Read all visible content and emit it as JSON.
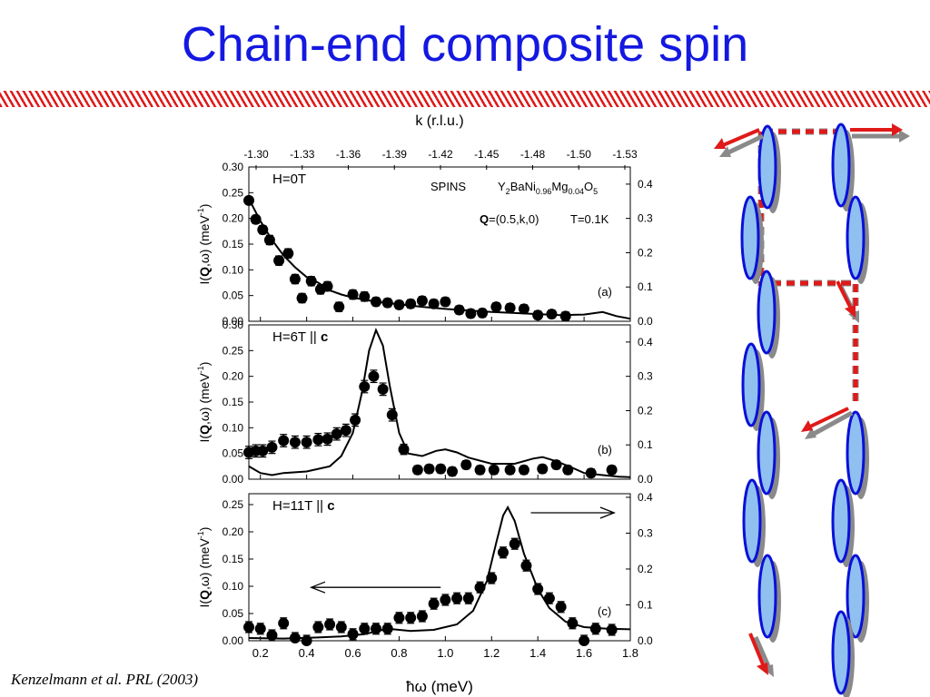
{
  "slide": {
    "title": "Chain-end composite spin",
    "citation": "Kenzelmann et al. PRL (2003)"
  },
  "colors": {
    "title": "#1418e0",
    "stripe": "#e01919",
    "spin_fill": "#8fc0f0",
    "spin_stroke": "#0a10d8",
    "arrow_red": "#e01919",
    "arrow_gray": "#8a8a8a"
  },
  "chart_data": {
    "type": "scatter",
    "xlabel": "ħω (meV)",
    "top_axis_label": "k (r.l.u.)",
    "x_ticks": [
      "0.2",
      "0.4",
      "0.6",
      "0.8",
      "1.0",
      "1.2",
      "1.4",
      "1.6",
      "1.8"
    ],
    "top_ticks": [
      "-1.30",
      "-1.33",
      "-1.36",
      "-1.39",
      "-1.42",
      "-1.45",
      "-1.48",
      "-1.50",
      "-1.53"
    ],
    "xlim": [
      0.15,
      1.8
    ],
    "annotations": {
      "instrument": "SPINS",
      "compound": [
        "Y",
        "2",
        "BaNi",
        "0.96",
        "Mg",
        "0.04",
        "O",
        "5"
      ],
      "q_bold": "Q",
      "q_rest": "=(0.5,k,0)",
      "temperature": "T=0.1K"
    },
    "panels": [
      {
        "tag": "(a)",
        "field_prefix": "H=0T",
        "field_axis": "",
        "ylabel": [
          "I(",
          "Q",
          ",ω) (meV",
          "-1",
          ")"
        ],
        "ylim": [
          0,
          0.3
        ],
        "yticks": [
          "0.00",
          "0.05",
          "0.10",
          "0.15",
          "0.20",
          "0.25",
          "0.30"
        ],
        "right_ylim": [
          0,
          0.45
        ],
        "right_ticks": [
          "0.0",
          "0.1",
          "0.2",
          "0.3",
          "0.4"
        ],
        "points": [
          [
            0.15,
            0.235
          ],
          [
            0.18,
            0.198
          ],
          [
            0.21,
            0.178
          ],
          [
            0.24,
            0.158
          ],
          [
            0.28,
            0.118
          ],
          [
            0.32,
            0.132
          ],
          [
            0.35,
            0.082
          ],
          [
            0.38,
            0.045
          ],
          [
            0.42,
            0.078
          ],
          [
            0.46,
            0.062
          ],
          [
            0.49,
            0.068
          ],
          [
            0.54,
            0.028
          ],
          [
            0.6,
            0.052
          ],
          [
            0.65,
            0.048
          ],
          [
            0.7,
            0.038
          ],
          [
            0.75,
            0.036
          ],
          [
            0.8,
            0.032
          ],
          [
            0.85,
            0.034
          ],
          [
            0.9,
            0.04
          ],
          [
            0.95,
            0.034
          ],
          [
            1.0,
            0.038
          ],
          [
            1.06,
            0.022
          ],
          [
            1.11,
            0.015
          ],
          [
            1.16,
            0.016
          ],
          [
            1.22,
            0.028
          ],
          [
            1.28,
            0.026
          ],
          [
            1.34,
            0.024
          ],
          [
            1.4,
            0.012
          ],
          [
            1.46,
            0.014
          ],
          [
            1.52,
            0.01
          ]
        ],
        "errors": [
          0.006,
          0.008,
          0.008,
          0.009,
          0.009,
          0.009,
          0.009,
          0.009,
          0.009,
          0.009,
          0.009,
          0.009,
          0.009,
          0.009,
          0.008,
          0.008,
          0.008,
          0.008,
          0.008,
          0.008,
          0.008,
          0.008,
          0.008,
          0.008,
          0.008,
          0.008,
          0.008,
          0.008,
          0.008,
          0.008
        ],
        "fit": [
          [
            0.15,
            0.238
          ],
          [
            0.2,
            0.195
          ],
          [
            0.25,
            0.158
          ],
          [
            0.3,
            0.128
          ],
          [
            0.35,
            0.105
          ],
          [
            0.4,
            0.086
          ],
          [
            0.45,
            0.075
          ],
          [
            0.5,
            0.06
          ],
          [
            0.55,
            0.052
          ],
          [
            0.6,
            0.046
          ],
          [
            0.7,
            0.038
          ],
          [
            0.8,
            0.033
          ],
          [
            0.9,
            0.028
          ],
          [
            1.0,
            0.024
          ],
          [
            1.1,
            0.021
          ],
          [
            1.2,
            0.018
          ],
          [
            1.3,
            0.016
          ],
          [
            1.4,
            0.014
          ],
          [
            1.5,
            0.012
          ],
          [
            1.6,
            0.013
          ],
          [
            1.68,
            0.018
          ],
          [
            1.74,
            0.01
          ],
          [
            1.8,
            0.005
          ]
        ]
      },
      {
        "tag": "(b)",
        "field_prefix": "H=6T || ",
        "field_axis": "c",
        "ylabel": [
          "I(",
          "Q",
          ",ω) (meV",
          "-1",
          ")"
        ],
        "ylim": [
          0,
          0.3
        ],
        "yticks": [
          "0.00",
          "0.05",
          "0.10",
          "0.15",
          "0.20",
          "0.25",
          "0.30"
        ],
        "right_ylim": [
          0,
          0.45
        ],
        "right_ticks": [
          "0.0",
          "0.1",
          "0.2",
          "0.3",
          "0.4"
        ],
        "points": [
          [
            0.15,
            0.052
          ],
          [
            0.18,
            0.055
          ],
          [
            0.21,
            0.055
          ],
          [
            0.25,
            0.062
          ],
          [
            0.3,
            0.075
          ],
          [
            0.35,
            0.072
          ],
          [
            0.4,
            0.072
          ],
          [
            0.45,
            0.077
          ],
          [
            0.49,
            0.078
          ],
          [
            0.53,
            0.088
          ],
          [
            0.57,
            0.095
          ],
          [
            0.61,
            0.115
          ],
          [
            0.65,
            0.18
          ],
          [
            0.69,
            0.2
          ],
          [
            0.73,
            0.175
          ],
          [
            0.77,
            0.125
          ],
          [
            0.82,
            0.058
          ],
          [
            0.88,
            0.018
          ],
          [
            0.93,
            0.02
          ],
          [
            0.98,
            0.02
          ],
          [
            1.03,
            0.015
          ],
          [
            1.09,
            0.028
          ],
          [
            1.15,
            0.018
          ],
          [
            1.21,
            0.018
          ],
          [
            1.28,
            0.018
          ],
          [
            1.34,
            0.018
          ],
          [
            1.42,
            0.02
          ],
          [
            1.48,
            0.028
          ],
          [
            1.53,
            0.018
          ],
          [
            1.63,
            0.012
          ],
          [
            1.72,
            0.018
          ]
        ],
        "errors": [
          0.012,
          0.012,
          0.012,
          0.012,
          0.012,
          0.012,
          0.012,
          0.012,
          0.012,
          0.012,
          0.012,
          0.012,
          0.012,
          0.012,
          0.012,
          0.012,
          0.01,
          0.008,
          0.008,
          0.008,
          0.008,
          0.008,
          0.008,
          0.008,
          0.008,
          0.008,
          0.008,
          0.008,
          0.008,
          0.008,
          0.008
        ],
        "fit": [
          [
            0.15,
            0.025
          ],
          [
            0.2,
            0.012
          ],
          [
            0.25,
            0.008
          ],
          [
            0.3,
            0.012
          ],
          [
            0.4,
            0.015
          ],
          [
            0.5,
            0.025
          ],
          [
            0.55,
            0.045
          ],
          [
            0.6,
            0.09
          ],
          [
            0.64,
            0.17
          ],
          [
            0.67,
            0.25
          ],
          [
            0.7,
            0.29
          ],
          [
            0.73,
            0.26
          ],
          [
            0.76,
            0.18
          ],
          [
            0.8,
            0.09
          ],
          [
            0.84,
            0.05
          ],
          [
            0.9,
            0.045
          ],
          [
            0.96,
            0.055
          ],
          [
            1.0,
            0.058
          ],
          [
            1.05,
            0.052
          ],
          [
            1.1,
            0.042
          ],
          [
            1.2,
            0.03
          ],
          [
            1.3,
            0.03
          ],
          [
            1.38,
            0.04
          ],
          [
            1.42,
            0.043
          ],
          [
            1.48,
            0.035
          ],
          [
            1.55,
            0.022
          ],
          [
            1.6,
            0.012
          ],
          [
            1.68,
            0.008
          ],
          [
            1.75,
            0.005
          ],
          [
            1.8,
            0.004
          ]
        ]
      },
      {
        "tag": "(c)",
        "field_prefix": "H=11T || ",
        "field_axis": "c",
        "ylabel": [
          "I(",
          "Q",
          ",ω) (meV",
          "-1",
          ")"
        ],
        "ylim": [
          0,
          0.27
        ],
        "yticks": [
          "0.00",
          "0.05",
          "0.10",
          "0.15",
          "0.20",
          "0.25"
        ],
        "right_ylim": [
          0,
          0.41
        ],
        "right_ticks": [
          "0.0",
          "0.1",
          "0.2",
          "0.3",
          "0.4"
        ],
        "points": [
          [
            0.15,
            0.025
          ],
          [
            0.2,
            0.022
          ],
          [
            0.25,
            0.01
          ],
          [
            0.3,
            0.032
          ],
          [
            0.35,
            0.005
          ],
          [
            0.4,
            0.0
          ],
          [
            0.45,
            0.025
          ],
          [
            0.5,
            0.03
          ],
          [
            0.55,
            0.025
          ],
          [
            0.6,
            0.012
          ],
          [
            0.65,
            0.022
          ],
          [
            0.7,
            0.022
          ],
          [
            0.75,
            0.022
          ],
          [
            0.8,
            0.042
          ],
          [
            0.85,
            0.042
          ],
          [
            0.9,
            0.045
          ],
          [
            0.95,
            0.068
          ],
          [
            1.0,
            0.075
          ],
          [
            1.05,
            0.078
          ],
          [
            1.1,
            0.078
          ],
          [
            1.15,
            0.098
          ],
          [
            1.2,
            0.115
          ],
          [
            1.25,
            0.162
          ],
          [
            1.3,
            0.178
          ],
          [
            1.35,
            0.138
          ],
          [
            1.4,
            0.095
          ],
          [
            1.45,
            0.078
          ],
          [
            1.5,
            0.062
          ],
          [
            1.55,
            0.032
          ],
          [
            1.6,
            0.0
          ],
          [
            1.65,
            0.022
          ],
          [
            1.72,
            0.02
          ]
        ],
        "errors": [
          0.01,
          0.01,
          0.01,
          0.01,
          0.01,
          0.01,
          0.01,
          0.01,
          0.01,
          0.01,
          0.01,
          0.01,
          0.01,
          0.01,
          0.01,
          0.01,
          0.01,
          0.01,
          0.01,
          0.01,
          0.01,
          0.01,
          0.01,
          0.01,
          0.01,
          0.01,
          0.01,
          0.01,
          0.01,
          0.01,
          0.01,
          0.01
        ],
        "fit": [
          [
            0.15,
            0.005
          ],
          [
            0.3,
            0.004
          ],
          [
            0.45,
            0.006
          ],
          [
            0.55,
            0.008
          ],
          [
            0.65,
            0.012
          ],
          [
            0.75,
            0.022
          ],
          [
            0.85,
            0.018
          ],
          [
            0.95,
            0.02
          ],
          [
            1.05,
            0.03
          ],
          [
            1.12,
            0.055
          ],
          [
            1.18,
            0.11
          ],
          [
            1.22,
            0.18
          ],
          [
            1.25,
            0.23
          ],
          [
            1.27,
            0.245
          ],
          [
            1.3,
            0.22
          ],
          [
            1.34,
            0.16
          ],
          [
            1.4,
            0.095
          ],
          [
            1.45,
            0.06
          ],
          [
            1.52,
            0.035
          ],
          [
            1.6,
            0.025
          ],
          [
            1.7,
            0.022
          ],
          [
            1.8,
            0.021
          ]
        ]
      }
    ]
  }
}
